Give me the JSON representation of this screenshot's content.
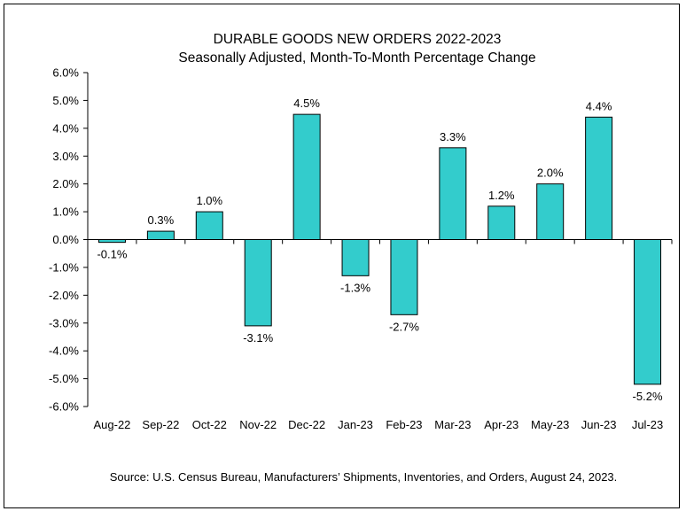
{
  "chart_data": {
    "type": "bar",
    "title": "DURABLE GOODS NEW ORDERS 2022-2023",
    "subtitle": "Seasonally Adjusted,  Month-To-Month Percentage Change",
    "categories": [
      "Aug-22",
      "Sep-22",
      "Oct-22",
      "Nov-22",
      "Dec-22",
      "Jan-23",
      "Feb-23",
      "Mar-23",
      "Apr-23",
      "May-23",
      "Jun-23",
      "Jul-23"
    ],
    "values": [
      -0.1,
      0.3,
      1.0,
      -3.1,
      4.5,
      -1.3,
      -2.7,
      3.3,
      1.2,
      2.0,
      4.4,
      -5.2
    ],
    "data_labels": [
      "-0.1%",
      "0.3%",
      "1.0%",
      "-3.1%",
      "4.5%",
      "-1.3%",
      "-2.7%",
      "3.3%",
      "1.2%",
      "2.0%",
      "4.4%",
      "-5.2%"
    ],
    "y_ticks": [
      6,
      5,
      4,
      3,
      2,
      1,
      0,
      -1,
      -2,
      -3,
      -4,
      -5,
      -6
    ],
    "y_tick_labels": [
      "6.0%",
      "5.0%",
      "4.0%",
      "3.0%",
      "2.0%",
      "1.0%",
      "0.0%",
      "-1.0%",
      "-2.0%",
      "-3.0%",
      "-4.0%",
      "-5.0%",
      "-6.0%"
    ],
    "ylim": [
      -6,
      6
    ],
    "xlabel": "",
    "ylabel": "",
    "grid": false,
    "bar_color": "#33CCCC",
    "bar_edge_color": "#000000",
    "source": "Source: U.S. Census Bureau, Manufacturers’ Shipments, Inventories, and Orders, August 24, 2023."
  }
}
